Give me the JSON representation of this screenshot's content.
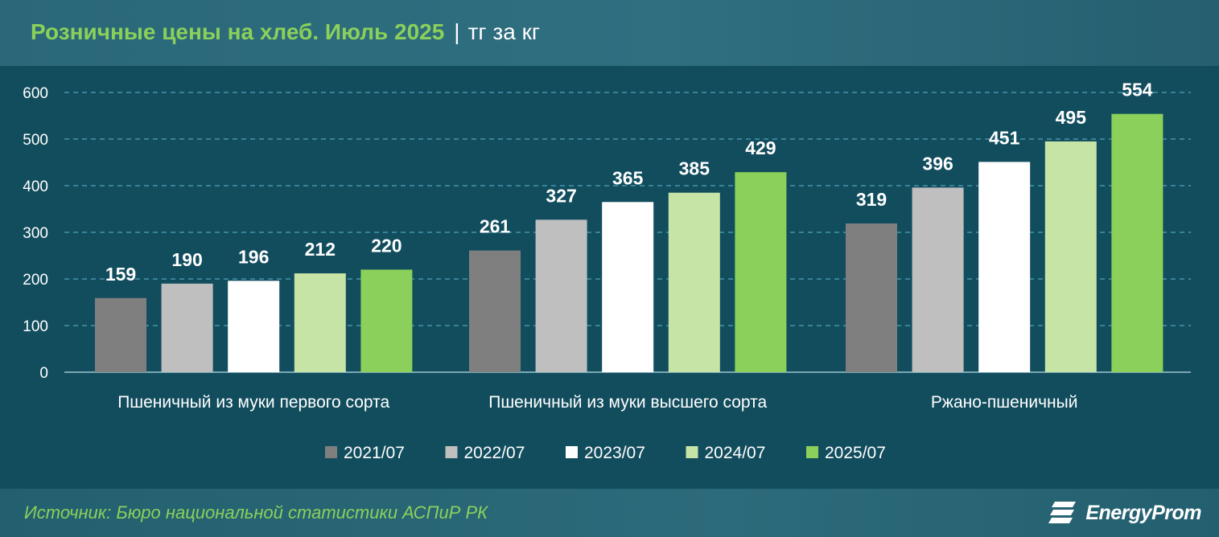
{
  "header": {
    "title": "Розничные цены на хлеб. Июль 2025",
    "separator": "|",
    "unit": "тг за кг"
  },
  "footer": {
    "source": "Источник: Бюро национальной статистики АСПиР РК",
    "brand": "EnergyProm"
  },
  "colors": {
    "background": "#124d5e",
    "accent_green": "#8bd05a",
    "grid": "#4fa3b8",
    "series": [
      "#7f7f7f",
      "#bfbfbf",
      "#ffffff",
      "#c6e4a6",
      "#8bd05a"
    ]
  },
  "chart_data": {
    "type": "bar",
    "title": "Розничные цены на хлеб. Июль 2025",
    "ylabel": "",
    "xlabel": "",
    "ylim": [
      0,
      600
    ],
    "yticks": [
      0,
      100,
      200,
      300,
      400,
      500,
      600
    ],
    "grid": true,
    "legend_position": "bottom",
    "categories": [
      "Пшеничный из муки первого сорта",
      "Пшеничный из муки высшего сорта",
      "Ржано-пшеничный"
    ],
    "series": [
      {
        "name": "2021/07",
        "values": [
          159,
          261,
          319
        ]
      },
      {
        "name": "2022/07",
        "values": [
          190,
          327,
          396
        ]
      },
      {
        "name": "2023/07",
        "values": [
          196,
          365,
          451
        ]
      },
      {
        "name": "2024/07",
        "values": [
          212,
          385,
          495
        ]
      },
      {
        "name": "2025/07",
        "values": [
          220,
          429,
          554
        ]
      }
    ]
  }
}
